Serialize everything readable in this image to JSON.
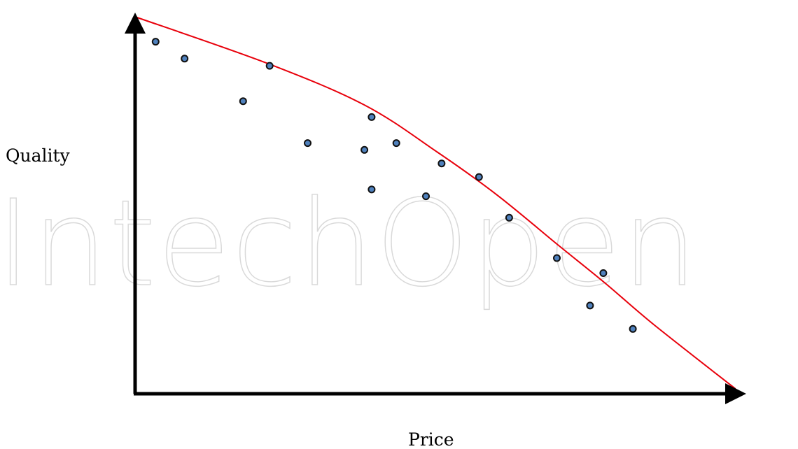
{
  "watermark": "IntechOpen",
  "chart_data": {
    "type": "scatter",
    "title": "",
    "xlabel": "Price",
    "ylabel": "Quality",
    "xlim": [
      0,
      100
    ],
    "ylim": [
      0,
      100
    ],
    "grid": false,
    "legend": "none",
    "colors": {
      "points": "#4f81bd",
      "point_outline": "#111111",
      "frontier": "#e8000b",
      "axes": "#000000"
    },
    "series": [
      {
        "type": "scatter",
        "points": [
          {
            "x": 3.4,
            "y": 93.4
          },
          {
            "x": 8.2,
            "y": 88.9
          },
          {
            "x": 17.9,
            "y": 77.6
          },
          {
            "x": 22.3,
            "y": 87.0
          },
          {
            "x": 28.6,
            "y": 66.5
          },
          {
            "x": 38.0,
            "y": 64.7
          },
          {
            "x": 39.2,
            "y": 73.4
          },
          {
            "x": 39.2,
            "y": 54.2
          },
          {
            "x": 43.3,
            "y": 66.5
          },
          {
            "x": 48.2,
            "y": 52.4
          },
          {
            "x": 50.8,
            "y": 61.1
          },
          {
            "x": 57.0,
            "y": 57.5
          },
          {
            "x": 62.0,
            "y": 46.7
          },
          {
            "x": 69.9,
            "y": 36.0
          },
          {
            "x": 75.4,
            "y": 23.4
          },
          {
            "x": 77.6,
            "y": 32.0
          },
          {
            "x": 82.5,
            "y": 17.2
          }
        ]
      },
      {
        "type": "line",
        "points": [
          {
            "x": 0,
            "y": 100
          },
          {
            "x": 22,
            "y": 87.6
          },
          {
            "x": 38,
            "y": 76.6
          },
          {
            "x": 50,
            "y": 64.2
          },
          {
            "x": 60,
            "y": 52.7
          },
          {
            "x": 70,
            "y": 39.6
          },
          {
            "x": 78,
            "y": 29.2
          },
          {
            "x": 86,
            "y": 18.3
          },
          {
            "x": 99.5,
            "y": 1.3
          }
        ]
      }
    ]
  }
}
